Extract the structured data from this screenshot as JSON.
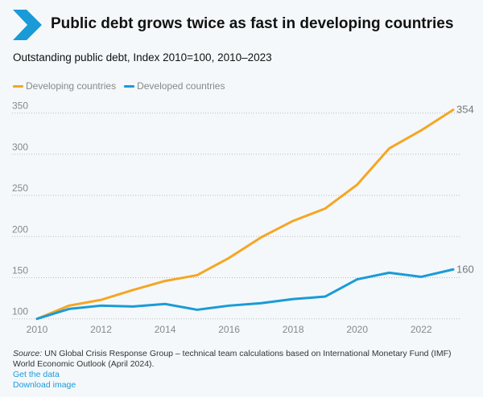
{
  "header": {
    "title": "Public debt grows twice as fast in developing countries",
    "subtitle": "Outstanding public debt, Index 2010=100, 2010–2023",
    "icon": "chevron-right-icon"
  },
  "colors": {
    "developing": "#f5a623",
    "developed": "#1a9bd7",
    "accent": "#1a9bd7"
  },
  "chart_data": {
    "type": "line",
    "title": "Public debt grows twice as fast in developing countries",
    "subtitle": "Outstanding public debt, Index 2010=100, 2010–2023",
    "x": [
      2010,
      2011,
      2012,
      2013,
      2014,
      2015,
      2016,
      2017,
      2018,
      2019,
      2020,
      2021,
      2022,
      2023
    ],
    "series": [
      {
        "name": "Developing countries",
        "color": "#f5a623",
        "values": [
          100,
          116,
          123,
          135,
          146,
          153,
          174,
          199,
          219,
          234,
          263,
          307,
          329,
          354
        ],
        "end_label": "354"
      },
      {
        "name": "Developed countries",
        "color": "#1a9bd7",
        "values": [
          100,
          112,
          116,
          115,
          118,
          111,
          116,
          119,
          124,
          127,
          148,
          156,
          151,
          160
        ],
        "end_label": "160"
      }
    ],
    "xticks": [
      "2010",
      "2012",
      "2014",
      "2016",
      "2018",
      "2020",
      "2022"
    ],
    "yticks": [
      "100",
      "150",
      "200",
      "250",
      "300",
      "350"
    ],
    "xlim": [
      2010,
      2023
    ],
    "ylim": [
      100,
      350
    ],
    "grid": "horizontal dotted",
    "legend": "top-left"
  },
  "footer": {
    "source_label": "Source:",
    "source_text": " UN Global Crisis Response Group – technical team calculations based on International Monetary Fund (IMF) World Economic Outlook (April 2024).",
    "get_data": "Get the data",
    "download": "Download image"
  }
}
